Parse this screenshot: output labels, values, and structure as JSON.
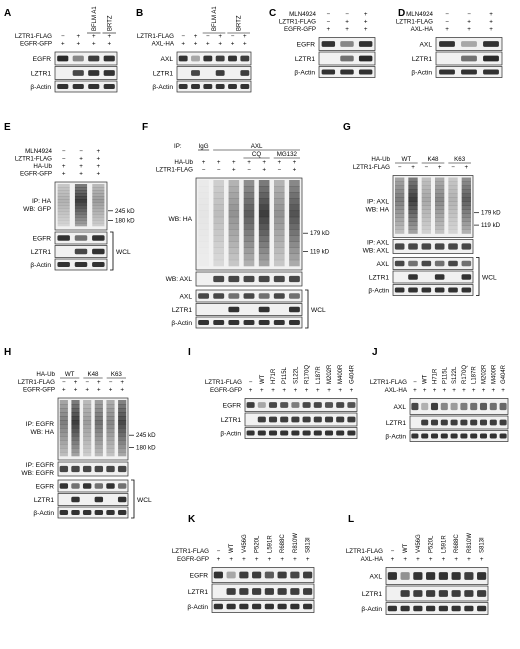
{
  "panels": [
    {
      "id": "A",
      "row": 1,
      "head": [
        {
          "label": "LZTR1-FLAG",
          "signs": [
            "−",
            "+",
            "+",
            "+"
          ]
        },
        {
          "label": "EGFR-GFP",
          "signs": [
            "+",
            "+",
            "+",
            "+"
          ]
        }
      ],
      "vert": [
        {
          "text": "BFLM A1",
          "from": 2,
          "to": 2
        },
        {
          "text": "BRTZ",
          "from": 3,
          "to": 3
        }
      ],
      "blots": [
        {
          "label": "EGFR",
          "pattern": [
            0.95,
            0.5,
            0.85,
            0.9
          ],
          "h": 13
        },
        {
          "label": "LZTR1",
          "pattern": [
            0,
            0.8,
            0.9,
            0.9
          ],
          "h": 13
        },
        {
          "label": "β-Actin",
          "pattern": [
            0.9,
            0.9,
            0.9,
            0.9
          ],
          "h": 11
        }
      ]
    },
    {
      "id": "B",
      "row": 1,
      "head": [
        {
          "label": "LZTR1-FLAG",
          "signs": [
            "−",
            "+",
            "−",
            "+",
            "−",
            "+"
          ]
        },
        {
          "label": "AXL-HA",
          "signs": [
            "+",
            "+",
            "+",
            "+",
            "+",
            "+"
          ]
        }
      ],
      "vert": [
        {
          "text": "BFLM A1",
          "from": 2,
          "to": 3
        },
        {
          "text": "BRTZ",
          "from": 4,
          "to": 5
        }
      ],
      "blots": [
        {
          "label": "AXL",
          "pattern": [
            0.9,
            0.35,
            0.9,
            0.85,
            0.9,
            0.85
          ],
          "h": 13
        },
        {
          "label": "LZTR1",
          "pattern": [
            0,
            0.8,
            0,
            0.85,
            0,
            0.85
          ],
          "h": 13
        },
        {
          "label": "β-Actin",
          "pattern": [
            0.9,
            0.9,
            0.9,
            0.9,
            0.9,
            0.9
          ],
          "h": 11
        }
      ]
    },
    {
      "id": "C",
      "row": 1,
      "head": [
        {
          "label": "MLN4924",
          "signs": [
            "−",
            "−",
            "+"
          ]
        },
        {
          "label": "LZTR1-FLAG",
          "signs": [
            "−",
            "+",
            "+"
          ]
        },
        {
          "label": "EGFR-GFP",
          "signs": [
            "+",
            "+",
            "+"
          ]
        }
      ],
      "vert": [],
      "blots": [
        {
          "label": "EGFR",
          "pattern": [
            0.9,
            0.5,
            0.9
          ],
          "h": 13
        },
        {
          "label": "LZTR1",
          "pattern": [
            0,
            0.6,
            0.95
          ],
          "h": 13
        },
        {
          "label": "β-Actin",
          "pattern": [
            0.9,
            0.9,
            0.9
          ],
          "h": 11
        }
      ]
    },
    {
      "id": "D",
      "row": 1,
      "head": [
        {
          "label": "MLN4924",
          "signs": [
            "−",
            "−",
            "+"
          ]
        },
        {
          "label": "LZTR1-FLAG",
          "signs": [
            "−",
            "+",
            "+"
          ]
        },
        {
          "label": "AXL-HA",
          "signs": [
            "+",
            "+",
            "+"
          ]
        }
      ],
      "vert": [],
      "blots": [
        {
          "label": "AXL",
          "pattern": [
            0.9,
            0.35,
            0.9
          ],
          "h": 13
        },
        {
          "label": "LZTR1",
          "pattern": [
            0,
            0.6,
            0.95
          ],
          "h": 13
        },
        {
          "label": "β-Actin",
          "pattern": [
            0.9,
            0.9,
            0.9
          ],
          "h": 11
        }
      ]
    },
    {
      "id": "E",
      "row": 2,
      "head": [
        {
          "label": "MLN4924",
          "signs": [
            "−",
            "−",
            "+"
          ]
        },
        {
          "label": "LZTR1-FLAG",
          "signs": [
            "−",
            "+",
            "+"
          ]
        },
        {
          "label": "HA-Ub",
          "signs": [
            "+",
            "+",
            "+"
          ]
        },
        {
          "label": "EGFR-GFP",
          "signs": [
            "+",
            "+",
            "+"
          ]
        }
      ],
      "vert": [],
      "smear": {
        "label": "IP: HA\nWB: GFP",
        "pattern": [
          0.3,
          0.85,
          0.4
        ],
        "markers": [
          "245 kD",
          "180 kD"
        ]
      },
      "blots": [
        {
          "label": "EGFR",
          "pattern": [
            0.9,
            0.6,
            0.9
          ],
          "h": 12
        },
        {
          "label": "LZTR1",
          "pattern": [
            0,
            0.8,
            0.9
          ],
          "h": 12
        },
        {
          "label": "β-Actin",
          "pattern": [
            0.9,
            0.9,
            0.9
          ],
          "h": 11
        }
      ],
      "bracket": "WCL"
    },
    {
      "id": "F",
      "row": 2,
      "ip": {
        "prefix": "IP:",
        "groups": [
          {
            "text": "IgG",
            "from": 0,
            "to": 0
          },
          {
            "text": "AXL",
            "from": 1,
            "to": 6
          }
        ],
        "sub": [
          {
            "text": "CQ",
            "from": 3,
            "to": 4
          },
          {
            "text": "MG132",
            "from": 5,
            "to": 6
          }
        ]
      },
      "head": [
        {
          "label": "HA-Ub",
          "signs": [
            "+",
            "+",
            "+",
            "+",
            "+",
            "+",
            "+"
          ]
        },
        {
          "label": "LZTR1-FLAG",
          "signs": [
            "−",
            "−",
            "+",
            "−",
            "+",
            "−",
            "+"
          ]
        }
      ],
      "vert": [],
      "smear": {
        "label": "WB: HA",
        "pattern": [
          0.05,
          0.25,
          0.45,
          0.7,
          0.85,
          0.45,
          0.75
        ],
        "markers": [
          "179 kD",
          "119 kD"
        ]
      },
      "mid": {
        "label": "WB: AXL",
        "pattern": [
          0,
          0.8,
          0.8,
          0.8,
          0.8,
          0.8,
          0.8
        ]
      },
      "blots": [
        {
          "label": "AXL",
          "pattern": [
            0.8,
            0.8,
            0.6,
            0.8,
            0.6,
            0.8,
            0.6
          ],
          "h": 12
        },
        {
          "label": "LZTR1",
          "pattern": [
            0,
            0,
            0.9,
            0,
            0.9,
            0,
            0.9
          ],
          "h": 12
        },
        {
          "label": "β-Actin",
          "pattern": [
            0.9,
            0.9,
            0.9,
            0.9,
            0.9,
            0.9,
            0.9
          ],
          "h": 11
        }
      ],
      "bracket": "WCL"
    },
    {
      "id": "G",
      "row": 2,
      "head": [
        {
          "label": "HA-Ub",
          "groups": [
            "WT",
            "K48",
            "K63"
          ]
        },
        {
          "label": "LZTR1-FLAG",
          "signs": [
            "−",
            "+",
            "−",
            "+",
            "−",
            "+"
          ]
        }
      ],
      "vert": [],
      "smear": {
        "label": "IP: AXL\nWB: HA",
        "pattern": [
          0.55,
          0.85,
          0.35,
          0.5,
          0.3,
          0.7
        ],
        "markers": [
          "179 kD",
          "119 kD"
        ]
      },
      "mid": {
        "label": "IP: AXL\nWB: AXL",
        "pattern": [
          0.8,
          0.8,
          0.8,
          0.8,
          0.8,
          0.8
        ]
      },
      "blots": [
        {
          "label": "AXL",
          "pattern": [
            0.8,
            0.6,
            0.8,
            0.6,
            0.8,
            0.6
          ],
          "h": 12
        },
        {
          "label": "LZTR1",
          "pattern": [
            0,
            0.9,
            0,
            0.9,
            0,
            0.9
          ],
          "h": 12
        },
        {
          "label": "β-Actin",
          "pattern": [
            0.9,
            0.9,
            0.9,
            0.9,
            0.9,
            0.9
          ],
          "h": 11
        }
      ],
      "bracket": "WCL"
    },
    {
      "id": "H",
      "row": 3,
      "head": [
        {
          "label": "HA-Ub",
          "groups": [
            "WT",
            "K48",
            "K63"
          ]
        },
        {
          "label": "LZTR1-FLAG",
          "signs": [
            "−",
            "+",
            "−",
            "+",
            "−",
            "+"
          ]
        },
        {
          "label": "EGFR-GFP",
          "signs": [
            "+",
            "+",
            "+",
            "+",
            "+",
            "+"
          ]
        }
      ],
      "vert": [],
      "smear": {
        "label": "IP: EGFR\nWB: HA",
        "pattern": [
          0.55,
          0.85,
          0.4,
          0.6,
          0.5,
          0.8
        ],
        "markers": [
          "245 kD",
          "180 kD"
        ]
      },
      "mid": {
        "label": "IP: EGFR\nWB: EGFR",
        "pattern": [
          0.8,
          0.8,
          0.8,
          0.8,
          0.8,
          0.8
        ]
      },
      "blots": [
        {
          "label": "EGFR",
          "pattern": [
            0.9,
            0.6,
            0.9,
            0.6,
            0.9,
            0.6
          ],
          "h": 12
        },
        {
          "label": "LZTR1",
          "pattern": [
            0,
            0.9,
            0,
            0.9,
            0,
            0.9
          ],
          "h": 12
        },
        {
          "label": "β-Actin",
          "pattern": [
            0.9,
            0.9,
            0.9,
            0.9,
            0.9,
            0.9
          ],
          "h": 11
        }
      ],
      "bracket": "WCL"
    },
    {
      "id": "I",
      "row": 3,
      "head": [
        {
          "label": "LZTR1-FLAG",
          "signs": [
            "−",
            "WT",
            "H71R",
            "P115L",
            "S122L",
            "R170Q",
            "L187R",
            "M202R",
            "M400R",
            "G404R"
          ]
        },
        {
          "label": "EGFR-GFP",
          "signs": [
            "+",
            "+",
            "+",
            "+",
            "+",
            "+",
            "+",
            "+",
            "+",
            "+"
          ]
        }
      ],
      "vert": [],
      "vertLabels": [
        1,
        9
      ],
      "blots": [
        {
          "label": "EGFR",
          "pattern": [
            0.85,
            0.35,
            0.8,
            0.75,
            0.55,
            0.8,
            0.8,
            0.75,
            0.8,
            0.75
          ],
          "h": 13
        },
        {
          "label": "LZTR1",
          "pattern": [
            0,
            0.85,
            0.85,
            0.85,
            0.85,
            0.85,
            0.85,
            0.85,
            0.85,
            0.85
          ],
          "h": 13
        },
        {
          "label": "β-Actin",
          "pattern": [
            0.9,
            0.9,
            0.9,
            0.9,
            0.9,
            0.9,
            0.9,
            0.9,
            0.9,
            0.9
          ],
          "h": 11
        }
      ]
    },
    {
      "id": "J",
      "row": 3,
      "head": [
        {
          "label": "LZTR1-FLAG",
          "signs": [
            "−",
            "WT",
            "H71R",
            "P115L",
            "S122L",
            "R170Q",
            "L187R",
            "M202R",
            "M400R",
            "G404R"
          ]
        },
        {
          "label": "AXL-HA",
          "signs": [
            "+",
            "+",
            "+",
            "+",
            "+",
            "+",
            "+",
            "+",
            "+",
            "+"
          ]
        }
      ],
      "vert": [],
      "vertLabels": [
        1,
        9
      ],
      "blots": [
        {
          "label": "AXL",
          "pattern": [
            0.8,
            0.3,
            0.85,
            0.5,
            0.4,
            0.55,
            0.6,
            0.7,
            0.6,
            0.65
          ],
          "h": 16
        },
        {
          "label": "LZTR1",
          "pattern": [
            0,
            0.85,
            0.85,
            0.85,
            0.85,
            0.85,
            0.85,
            0.85,
            0.85,
            0.85
          ],
          "h": 13
        },
        {
          "label": "β-Actin",
          "pattern": [
            0.9,
            0.9,
            0.9,
            0.9,
            0.9,
            0.9,
            0.9,
            0.9,
            0.9,
            0.9
          ],
          "h": 11
        }
      ]
    },
    {
      "id": "K",
      "row": 4,
      "head": [
        {
          "label": "LZTR1-FLAG",
          "signs": [
            "−",
            "WT",
            "V456G",
            "P520L",
            "L591R",
            "R688C",
            "R810W",
            "S813I"
          ]
        },
        {
          "label": "EGFR-GFP",
          "signs": [
            "+",
            "+",
            "+",
            "+",
            "+",
            "+",
            "+",
            "+"
          ]
        }
      ],
      "vert": [],
      "vertLabels": [
        1,
        7
      ],
      "blots": [
        {
          "label": "EGFR",
          "pattern": [
            0.9,
            0.35,
            0.85,
            0.85,
            0.7,
            0.85,
            0.8,
            0.85
          ],
          "h": 15
        },
        {
          "label": "LZTR1",
          "pattern": [
            0,
            0.85,
            0.85,
            0.85,
            0.85,
            0.85,
            0.85,
            0.85
          ],
          "h": 15
        },
        {
          "label": "β-Actin",
          "pattern": [
            0.9,
            0.9,
            0.9,
            0.9,
            0.9,
            0.9,
            0.9,
            0.9
          ],
          "h": 12
        }
      ]
    },
    {
      "id": "L",
      "row": 4,
      "head": [
        {
          "label": "LZTR1-FLAG",
          "signs": [
            "−",
            "WT",
            "V456G",
            "P520L",
            "L591R",
            "R688C",
            "R810W",
            "S813I"
          ]
        },
        {
          "label": "AXL-HA",
          "signs": [
            "+",
            "+",
            "+",
            "+",
            "+",
            "+",
            "+",
            "+"
          ]
        }
      ],
      "vert": [],
      "vertLabels": [
        1,
        7
      ],
      "blots": [
        {
          "label": "AXL",
          "pattern": [
            0.9,
            0.45,
            0.9,
            0.9,
            0.9,
            0.9,
            0.85,
            0.9
          ],
          "h": 17
        },
        {
          "label": "LZTR1",
          "pattern": [
            0,
            0.85,
            0.85,
            0.85,
            0.85,
            0.85,
            0.85,
            0.85
          ],
          "h": 15
        },
        {
          "label": "β-Actin",
          "pattern": [
            0.9,
            0.9,
            0.9,
            0.9,
            0.9,
            0.9,
            0.9,
            0.9
          ],
          "h": 12
        }
      ]
    }
  ]
}
